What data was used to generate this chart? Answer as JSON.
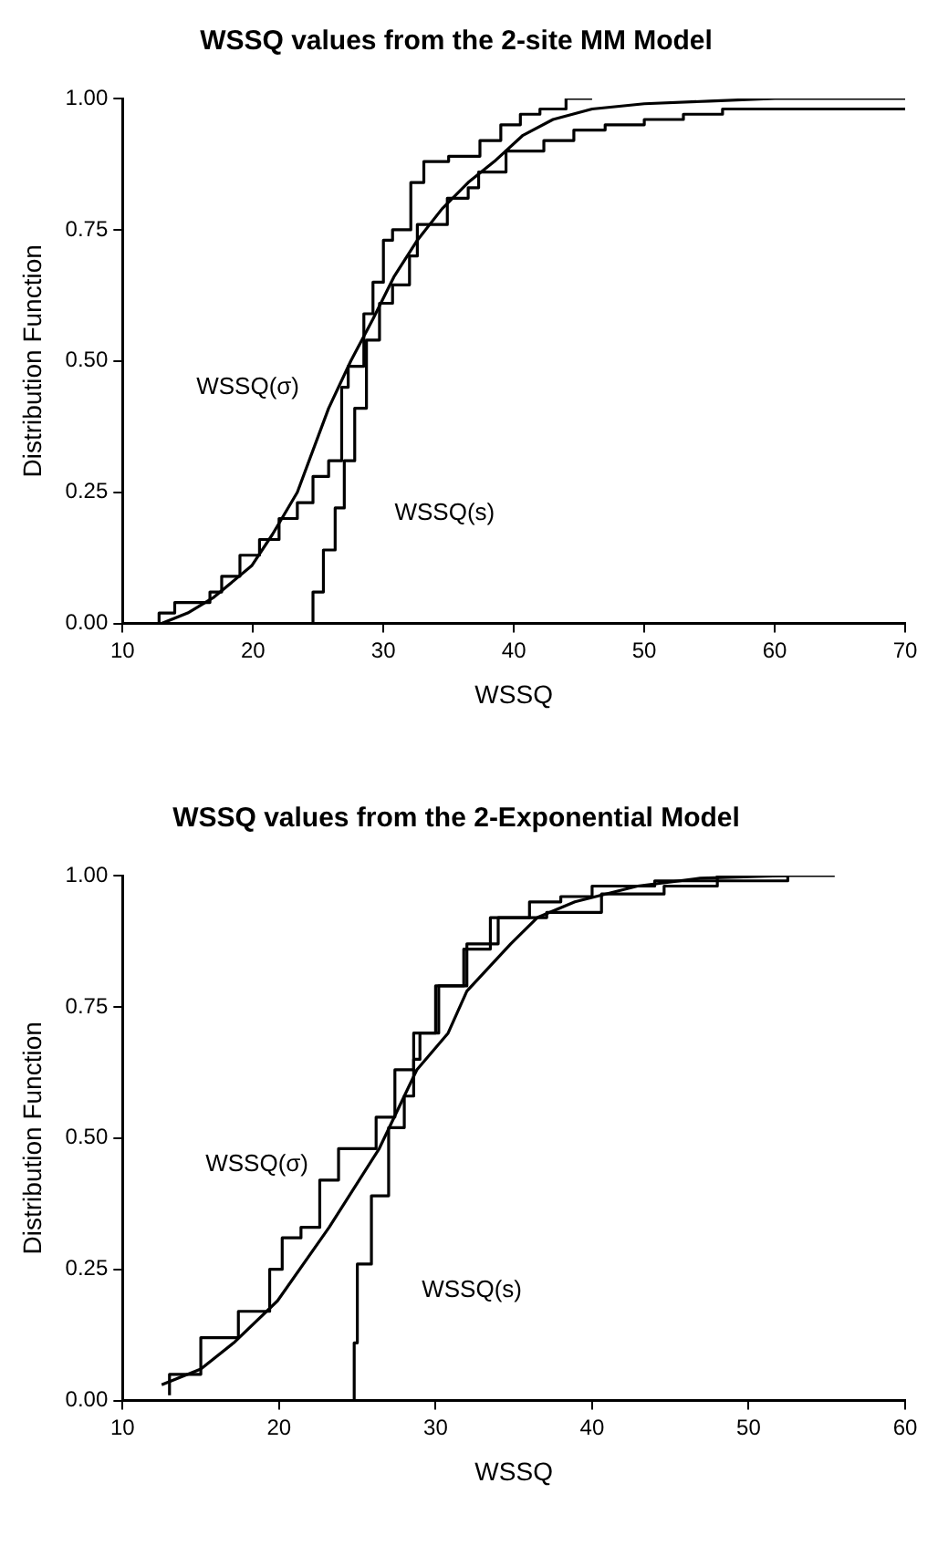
{
  "chart_data": [
    {
      "type": "line",
      "title": "WSSQ values from the 2-site MM Model",
      "xlabel": "WSSQ",
      "ylabel": "Distribution Function",
      "xlim": [
        10,
        70
      ],
      "xticks": [
        10,
        20,
        30,
        40,
        50,
        60,
        70
      ],
      "ylim": [
        0,
        1
      ],
      "yticks": [
        {
          "value": 0,
          "label": "0.00"
        },
        {
          "value": 0.25,
          "label": "0.25"
        },
        {
          "value": 0.5,
          "label": "0.50"
        },
        {
          "value": 0.75,
          "label": "0.75"
        },
        {
          "value": 1,
          "label": "1.00"
        }
      ],
      "grid": false,
      "legend": false,
      "series": [
        {
          "color": "#000000",
          "x": [
            13,
            15,
            17,
            19.9,
            21.5,
            23.4,
            25.8,
            27.5,
            29.2,
            30.8,
            32.6,
            34.5,
            36.5,
            38.5,
            40.7,
            43,
            46,
            50,
            55,
            60,
            70
          ],
          "values": [
            0,
            0.02,
            0.05,
            0.11,
            0.17,
            0.25,
            0.41,
            0.5,
            0.58,
            0.66,
            0.73,
            0.79,
            0.84,
            0.88,
            0.93,
            0.96,
            0.98,
            0.99,
            0.995,
            1,
            1
          ]
        },
        {
          "type": "step",
          "name": "WSSQ(σ)",
          "color": "#000000",
          "x": [
            12.8,
            14,
            14.7,
            16.7,
            17.6,
            19,
            20.5,
            22,
            23.4,
            24.6,
            25.8,
            26.8,
            27.3,
            28.5,
            29.2,
            30,
            30.7,
            32.1,
            33.1,
            35,
            37.4,
            39,
            40.5,
            42,
            44,
            46
          ],
          "values": [
            0,
            0.02,
            0.04,
            0.04,
            0.06,
            0.09,
            0.13,
            0.16,
            0.2,
            0.23,
            0.28,
            0.31,
            0.45,
            0.49,
            0.59,
            0.65,
            0.73,
            0.75,
            0.84,
            0.88,
            0.89,
            0.92,
            0.95,
            0.97,
            0.98,
            1
          ]
        },
        {
          "type": "step",
          "name": "WSSQ(s)",
          "color": "#000000",
          "x": [
            10,
            24.6,
            25.4,
            26.3,
            27,
            27.8,
            28.7,
            29.7,
            30.7,
            32,
            32.6,
            34.5,
            34.9,
            36.5,
            37.3,
            39.4,
            42.3,
            44.6,
            47,
            50,
            53,
            56,
            62,
            70
          ],
          "values": [
            0,
            0,
            0.06,
            0.14,
            0.22,
            0.31,
            0.41,
            0.54,
            0.61,
            0.645,
            0.7,
            0.76,
            0.76,
            0.81,
            0.83,
            0.86,
            0.9,
            0.92,
            0.94,
            0.95,
            0.96,
            0.97,
            0.98,
            0.98
          ]
        }
      ]
    },
    {
      "type": "line",
      "title": "WSSQ values from the 2-Exponential Model",
      "xlabel": "WSSQ",
      "ylabel": "Distribution Function",
      "xlim": [
        10,
        60
      ],
      "xticks": [
        10,
        20,
        30,
        40,
        50,
        60
      ],
      "ylim": [
        0,
        1
      ],
      "yticks": [
        {
          "value": 0,
          "label": "0.00"
        },
        {
          "value": 0.25,
          "label": "0.25"
        },
        {
          "value": 0.5,
          "label": "0.50"
        },
        {
          "value": 0.75,
          "label": "0.75"
        },
        {
          "value": 1,
          "label": "1.00"
        }
      ],
      "grid": false,
      "legend": false,
      "series": [
        {
          "color": "#000000",
          "x": [
            12.5,
            15,
            17.1,
            19.9,
            23.2,
            26.4,
            28.8,
            30.8,
            32,
            34.8,
            36.5,
            38.9,
            42.9,
            46.9,
            52.5
          ],
          "values": [
            0.03,
            0.06,
            0.11,
            0.19,
            0.33,
            0.48,
            0.63,
            0.7,
            0.78,
            0.87,
            0.92,
            0.95,
            0.98,
            0.995,
            1
          ]
        },
        {
          "type": "step",
          "name": "WSSQ(σ)",
          "color": "#000000",
          "x": [
            13,
            15,
            17.4,
            19.4,
            20.2,
            21.4,
            22.6,
            23.8,
            25,
            26.2,
            27.4,
            28.6,
            30.2,
            31.8,
            33.5,
            34.7,
            37.1,
            40.6,
            44.6,
            48,
            52.5,
            55.5
          ],
          "values": [
            0.01,
            0.05,
            0.12,
            0.17,
            0.25,
            0.31,
            0.33,
            0.42,
            0.48,
            0.48,
            0.54,
            0.63,
            0.7,
            0.79,
            0.86,
            0.92,
            0.92,
            0.93,
            0.965,
            0.98,
            0.99,
            1
          ]
        },
        {
          "type": "step",
          "name": "WSSQ(s)",
          "color": "#000000",
          "x": [
            24.8,
            25,
            25.9,
            27,
            28,
            28.6,
            29,
            30,
            32,
            34,
            36,
            38,
            40,
            44,
            48,
            52.5
          ],
          "values": [
            0,
            0.11,
            0.26,
            0.39,
            0.52,
            0.58,
            0.65,
            0.7,
            0.79,
            0.87,
            0.92,
            0.95,
            0.96,
            0.98,
            0.99,
            1
          ]
        }
      ]
    }
  ]
}
